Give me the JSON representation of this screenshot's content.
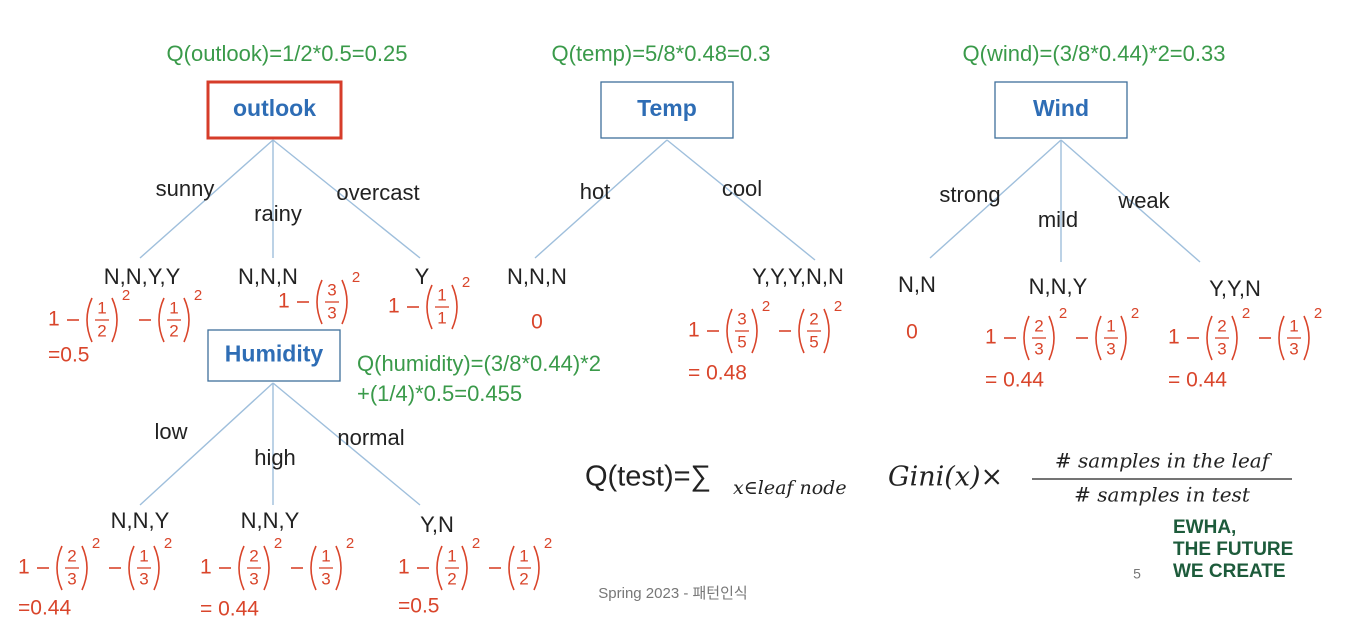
{
  "trees": [
    {
      "quality": [
        "Q(outlook)=1/2*0.5=0.25"
      ],
      "root": "outlook",
      "branches": [
        "sunny",
        "rainy",
        "overcast"
      ],
      "leaves": [
        {
          "label": "N,N,Y,Y",
          "gini": {
            "lead": "1",
            "terms": [
              [
                "1",
                "2",
                "2"
              ],
              [
                "1",
                "2",
                "2"
              ]
            ]
          },
          "result": "=0.5"
        },
        {
          "label": "N,N,N",
          "gini": {
            "lead": "1",
            "terms": [
              [
                "3",
                "3",
                "2"
              ]
            ]
          }
        },
        {
          "label": "Y",
          "gini": {
            "lead": "1",
            "terms": [
              [
                "1",
                "1",
                "2"
              ]
            ]
          }
        }
      ]
    },
    {
      "quality": [
        "Q(temp)=5/8*0.48=0.3"
      ],
      "root": "Temp",
      "branches": [
        "hot",
        "cool"
      ],
      "leaves": [
        {
          "label": "N,N,N",
          "result": "0"
        },
        {
          "label": "Y,Y,Y,N,N",
          "gini": {
            "lead": "1",
            "terms": [
              [
                "3",
                "5",
                "2"
              ],
              [
                "2",
                "5",
                "2"
              ]
            ]
          },
          "result": "= 0.48"
        }
      ]
    },
    {
      "quality": [
        "Q(wind)=(3/8*0.44)*2=0.33"
      ],
      "root": "Wind",
      "branches": [
        "strong",
        "mild",
        "weak"
      ],
      "leaves": [
        {
          "label": "N,N",
          "result": "0"
        },
        {
          "label": "N,N,Y",
          "gini": {
            "lead": "1",
            "terms": [
              [
                "2",
                "3",
                "2"
              ],
              [
                "1",
                "3",
                "2"
              ]
            ]
          },
          "result": "= 0.44"
        },
        {
          "label": "Y,Y,N",
          "gini": {
            "lead": "1",
            "terms": [
              [
                "2",
                "3",
                "2"
              ],
              [
                "1",
                "3",
                "2"
              ]
            ]
          },
          "result": "= 0.44"
        }
      ]
    },
    {
      "quality": [
        "Q(humidity)=(3/8*0.44)*2",
        "+(1/4)*0.5=0.455"
      ],
      "root": "Humidity",
      "branches": [
        "low",
        "high",
        "normal"
      ],
      "leaves": [
        {
          "label": "N,N,Y",
          "gini": {
            "lead": "1",
            "terms": [
              [
                "2",
                "3",
                "2"
              ],
              [
                "1",
                "3",
                "2"
              ]
            ]
          },
          "result": "=0.44"
        },
        {
          "label": "N,N,Y",
          "gini": {
            "lead": "1",
            "terms": [
              [
                "2",
                "3",
                "2"
              ],
              [
                "1",
                "3",
                "2"
              ]
            ]
          },
          "result": "= 0.44"
        },
        {
          "label": "Y,N",
          "gini": {
            "lead": "1",
            "terms": [
              [
                "1",
                "2",
                "2"
              ],
              [
                "1",
                "2",
                "2"
              ]
            ]
          },
          "result": "=0.5"
        }
      ]
    }
  ],
  "formula": {
    "lhs": "Q(test)=∑",
    "subscript": "x∈leaf node",
    "body": "Gini(x)×",
    "numerator": "# samples in the leaf",
    "denominator": "# samples in test"
  },
  "footer": {
    "course": "Spring 2023 - 패턴인식",
    "page": "5",
    "logo": [
      "EWHA,",
      "THE FUTURE",
      "WE CREATE"
    ]
  }
}
